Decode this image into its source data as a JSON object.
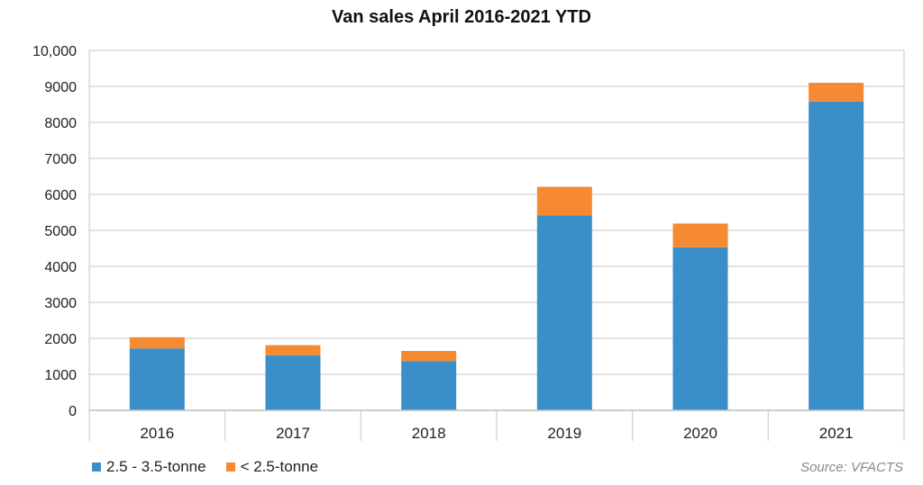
{
  "chart_data": {
    "type": "bar",
    "stacked": true,
    "title": "Van sales April 2016-2021 YTD",
    "xlabel": "",
    "ylabel": "",
    "categories": [
      "2016",
      "2017",
      "2018",
      "2019",
      "2020",
      "2021"
    ],
    "series": [
      {
        "name": "2.5 - 3.5-tonne",
        "color": "#3a8fc9",
        "values": [
          1720,
          1530,
          1370,
          5420,
          4530,
          8580
        ]
      },
      {
        "name": "< 2.5-tonne",
        "color": "#f58a33",
        "values": [
          310,
          280,
          280,
          790,
          660,
          520
        ]
      }
    ],
    "ylim": [
      0,
      10000
    ],
    "yticks": [
      {
        "value": 0,
        "label": "0"
      },
      {
        "value": 1000,
        "label": "1000"
      },
      {
        "value": 2000,
        "label": "2000"
      },
      {
        "value": 3000,
        "label": "3000"
      },
      {
        "value": 4000,
        "label": "4000"
      },
      {
        "value": 5000,
        "label": "5000"
      },
      {
        "value": 6000,
        "label": "6000"
      },
      {
        "value": 7000,
        "label": "7000"
      },
      {
        "value": 8000,
        "label": "8000"
      },
      {
        "value": 9000,
        "label": "9000"
      },
      {
        "value": 10000,
        "label": "10,000"
      }
    ],
    "grid": true,
    "legend_position": "bottom-left",
    "source": "Source: VFACTS"
  }
}
